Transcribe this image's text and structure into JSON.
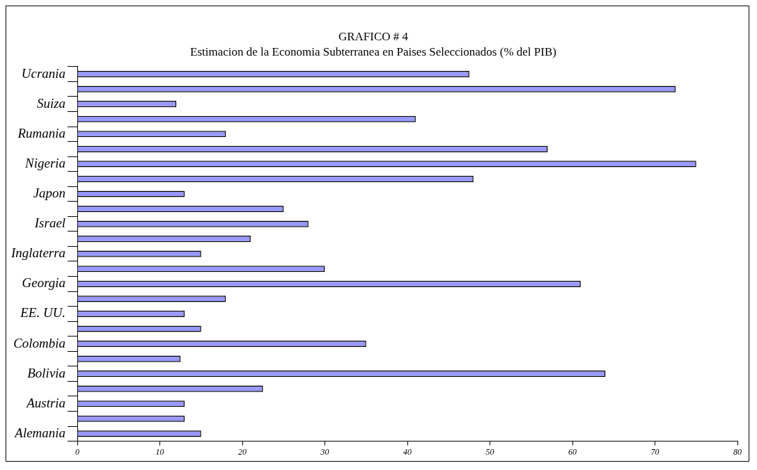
{
  "chart_data": {
    "type": "bar",
    "orientation": "horizontal",
    "title": "GRAFICO # 4",
    "subtitle": "Estimacion de la Economia Subterranea en Paises Seleccionados (% del PIB)",
    "categories": [
      "Ucrania",
      null,
      "Suiza",
      null,
      "Rumania",
      null,
      "Nigeria",
      null,
      "Japon",
      null,
      "Israel",
      null,
      "Inglaterra",
      null,
      "Georgia",
      null,
      "EE. UU.",
      null,
      "Colombia",
      null,
      "Bolivia",
      null,
      "Austria",
      null,
      "Alemania"
    ],
    "values": [
      47.5,
      72.5,
      12,
      41,
      18,
      57,
      75,
      48,
      13,
      25,
      28,
      21,
      15,
      30,
      61,
      18,
      13,
      15,
      35,
      12.5,
      64,
      22.5,
      13,
      13,
      15
    ],
    "color": "#9999ff",
    "xlim": [
      0,
      80
    ],
    "xticks": [
      0,
      10,
      20,
      30,
      40,
      50,
      60,
      70,
      80
    ],
    "grid": false,
    "legend": false
  }
}
